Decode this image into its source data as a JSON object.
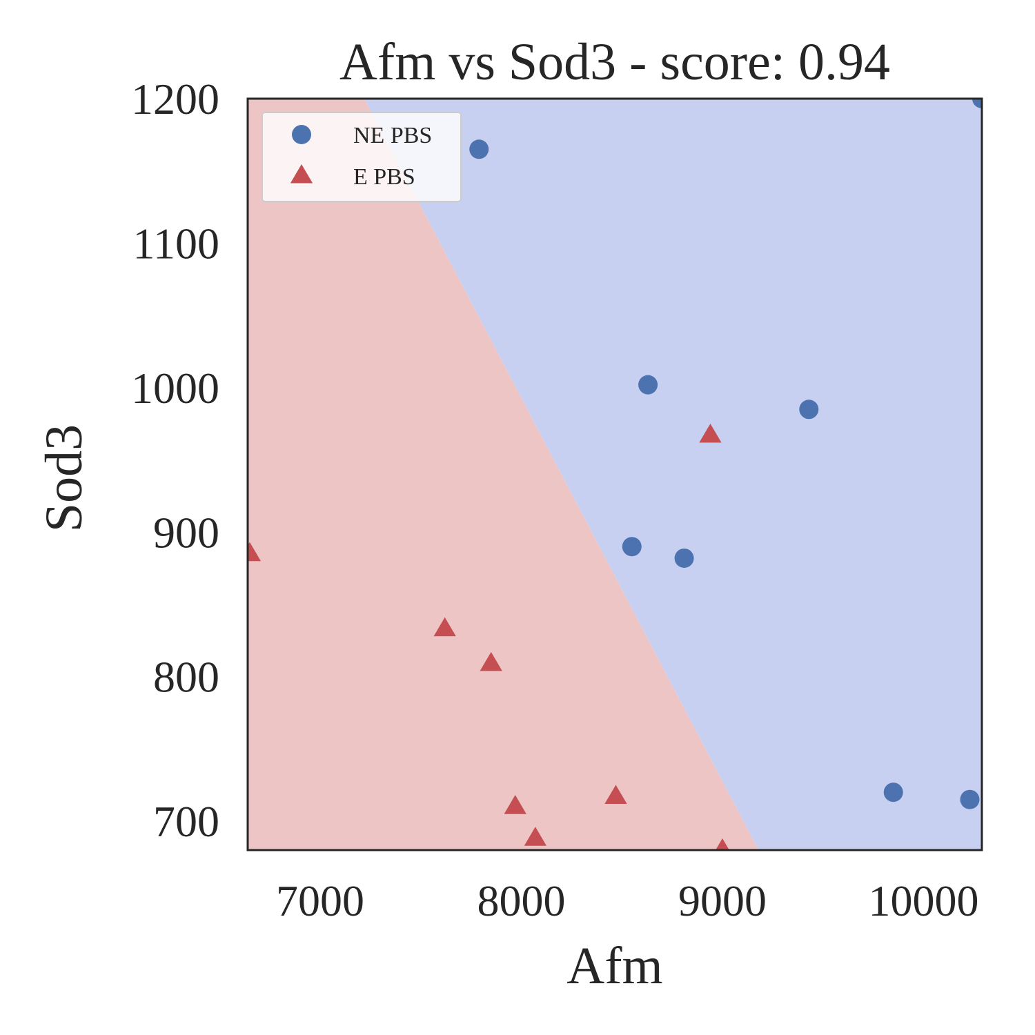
{
  "chart_data": {
    "type": "scatter",
    "title": "Afm vs Sod3 - score: 0.94",
    "xlabel": "Afm",
    "ylabel": "Sod3",
    "xlim": [
      6640,
      10290
    ],
    "ylim": [
      680,
      1200
    ],
    "xticks": [
      7000,
      8000,
      9000,
      10000
    ],
    "yticks": [
      700,
      800,
      900,
      1000,
      1100,
      1200
    ],
    "grid": false,
    "legend_position": "top-left",
    "decision_boundary": {
      "points": [
        [
          7220,
          1200
        ],
        [
          9180,
          680
        ]
      ],
      "left_region_class": "E PBS",
      "right_region_class": "NE PBS"
    },
    "region_colors": {
      "E PBS": "#eec5c5",
      "NE PBS": "#c8d0f1"
    },
    "series": [
      {
        "name": "NE PBS",
        "marker": "circle",
        "color": "#4c72b0",
        "points": [
          [
            7790,
            1165
          ],
          [
            8630,
            1002
          ],
          [
            9430,
            985
          ],
          [
            8550,
            890
          ],
          [
            8810,
            882
          ],
          [
            9850,
            720
          ],
          [
            10230,
            715
          ],
          [
            10290,
            1200
          ]
        ]
      },
      {
        "name": "E PBS",
        "marker": "triangle",
        "color": "#c44e52",
        "points": [
          [
            8940,
            967
          ],
          [
            6650,
            885
          ],
          [
            7620,
            833
          ],
          [
            7850,
            809
          ],
          [
            7970,
            710
          ],
          [
            8070,
            688
          ],
          [
            8470,
            717
          ],
          [
            9000,
            680
          ]
        ]
      }
    ]
  }
}
